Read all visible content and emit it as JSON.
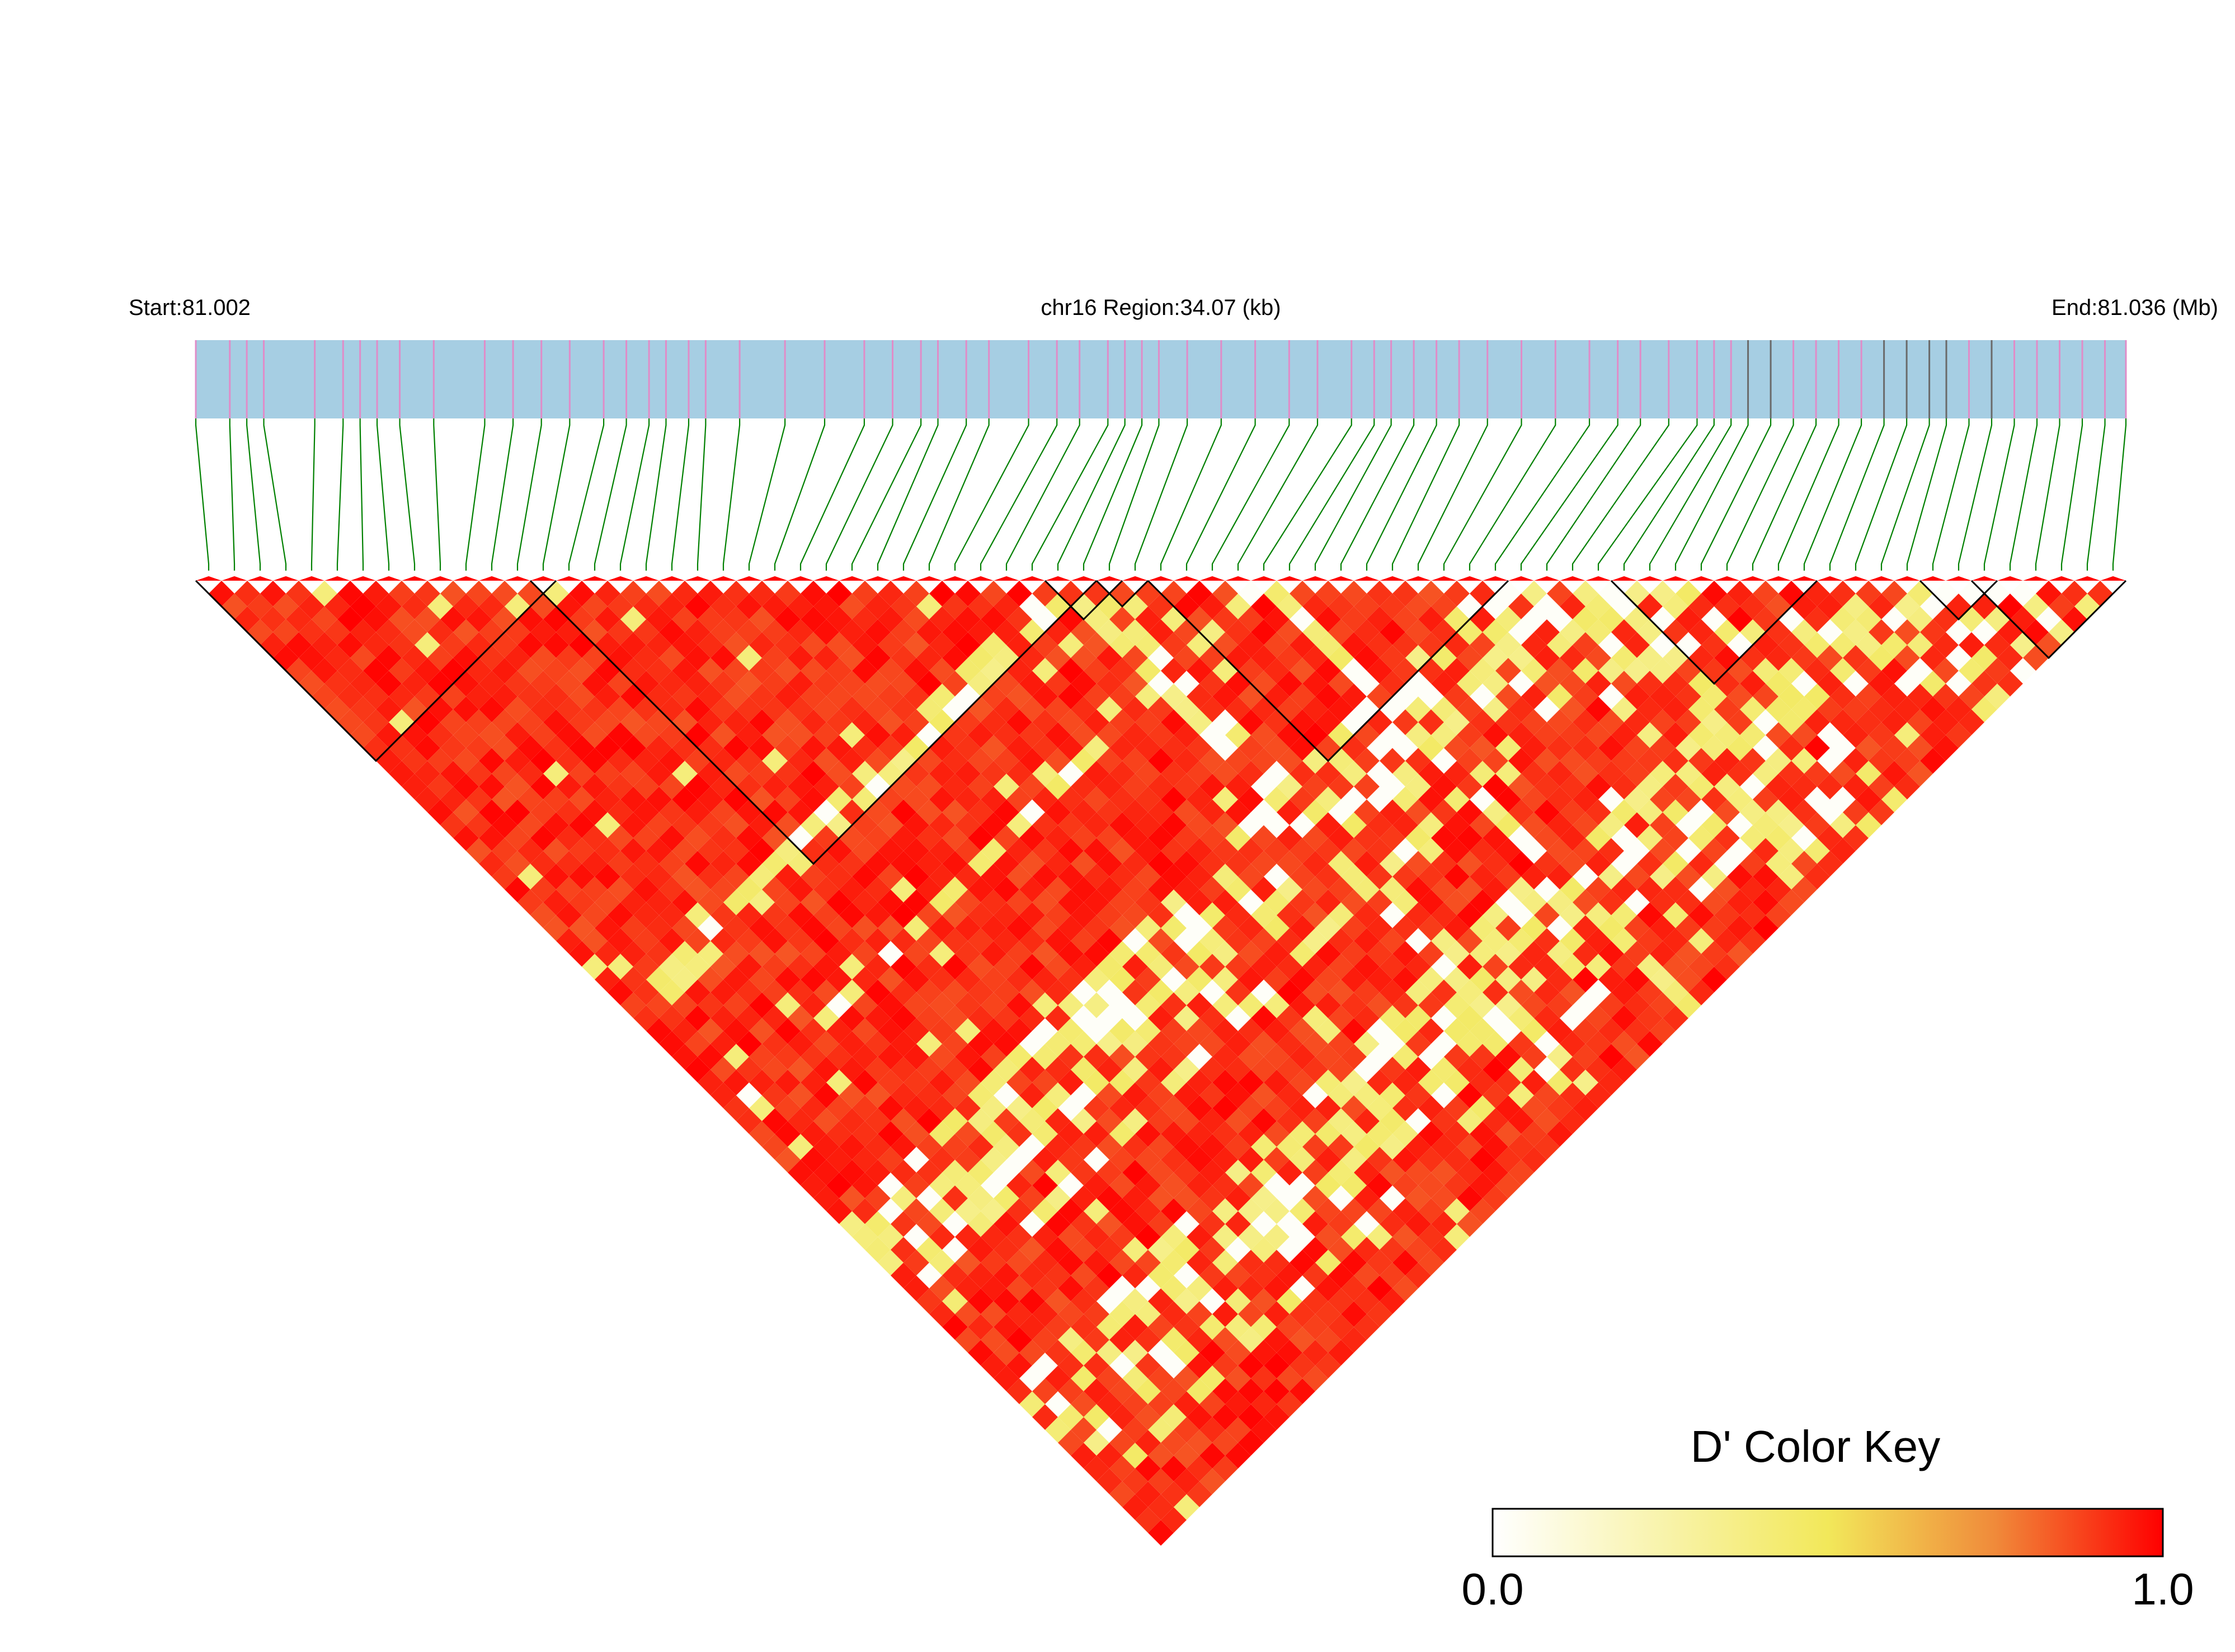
{
  "chart_data": {
    "type": "heatmap",
    "subtype": "linkage-disequilibrium-triangle",
    "metric": "D'",
    "header": {
      "start_label": "Start:81.002",
      "region_label": "chr16 Region:34.07 (kb)",
      "end_label": "End:81.036 (Mb)"
    },
    "chromosome": "chr16",
    "start_mb": 81.002,
    "end_mb": 81.036,
    "region_kb": 34.07,
    "n_snps": 75,
    "snp_positions_kb": [
      0.0,
      0.6,
      0.9,
      1.2,
      2.1,
      2.6,
      2.9,
      3.2,
      3.6,
      4.2,
      5.1,
      5.6,
      6.1,
      6.6,
      7.2,
      7.6,
      8.0,
      8.3,
      8.7,
      9.0,
      9.6,
      10.4,
      11.1,
      11.8,
      12.3,
      12.8,
      13.1,
      13.6,
      14.0,
      14.7,
      15.2,
      15.6,
      16.1,
      16.4,
      16.7,
      17.0,
      17.5,
      18.1,
      18.7,
      19.3,
      19.8,
      20.4,
      20.8,
      21.1,
      21.5,
      21.9,
      22.3,
      22.8,
      23.4,
      24.0,
      24.6,
      25.1,
      25.5,
      26.0,
      26.5,
      26.8,
      27.1,
      27.4,
      27.8,
      28.2,
      28.6,
      29.0,
      29.4,
      29.8,
      30.2,
      30.6,
      30.9,
      31.3,
      31.7,
      32.1,
      32.5,
      32.9,
      33.3,
      33.7,
      34.07
    ],
    "haplotype_blocks": [
      {
        "from_snp": 1,
        "to_snp": 14
      },
      {
        "from_snp": 14,
        "to_snp": 35
      },
      {
        "from_snp": 34,
        "to_snp": 36
      },
      {
        "from_snp": 36,
        "to_snp": 37
      },
      {
        "from_snp": 38,
        "to_snp": 51
      },
      {
        "from_snp": 56,
        "to_snp": 63
      },
      {
        "from_snp": 68,
        "to_snp": 70
      },
      {
        "from_snp": 70,
        "to_snp": 75
      }
    ],
    "dprime_pattern": {
      "default_value": 0.92,
      "low_ld_snps": [
        33,
        34,
        41,
        50,
        51,
        52,
        53,
        54,
        55,
        57,
        63,
        64,
        65,
        66,
        67,
        68,
        70
      ],
      "description": "D' values mostly 0.85-1.0 (red); SNPs listed in low_ld_snps show D' 0.0-0.5 (white/yellow) with many pairs"
    },
    "color_key": {
      "title": "D' Color Key",
      "min_label": "0.0",
      "max_label": "1.0",
      "min": 0.0,
      "max": 1.0,
      "stops": [
        "#ffffff",
        "#f2e85a",
        "#f08a3a",
        "#ff0000"
      ]
    }
  },
  "colors": {
    "track_fill": "#a6cee3",
    "snp_tick_pink": "#e08cc8",
    "snp_tick_gray": "#6a6a6a",
    "connector": "#008000",
    "high_ld": "#ff0000",
    "block_outline": "#000000"
  }
}
